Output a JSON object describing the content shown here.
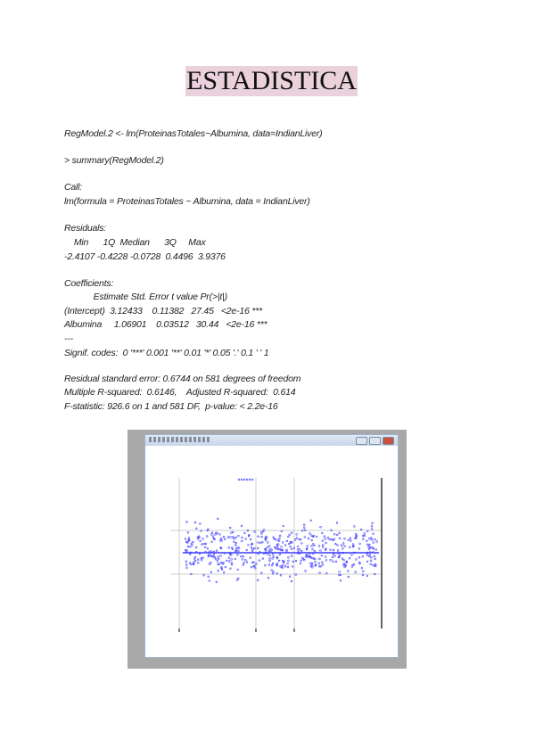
{
  "title": "ESTADISTICA",
  "lines": [
    "RegModel.2 <- lm(ProteinasTotales~Albumina, data=IndianLiver)",
    "> summary(RegModel.2)",
    "Call:",
    "lm(formula = ProteinasTotales ~ Albumina, data = IndianLiver)",
    "Residuals:",
    "    Min      1Q  Median      3Q     Max",
    "-2.4107 -0.4228 -0.0728  0.4496  3.9376",
    "Coefficients:",
    "            Estimate Std. Error t value Pr(>|t|)",
    "(Intercept)  3.12433    0.11382   27.45   <2e-16 ***",
    "Albumina     1.06901    0.03512   30.44   <2e-16 ***",
    "---",
    "Signif. codes:  0 '***' 0.001 '**' 0.01 '*' 0.05 '.' 0.1 ' ' 1",
    "Residual standard error: 0.6744 on 581 degrees of freedom",
    "Multiple R-squared:  0.6146,    Adjusted R-squared:  0.614",
    "F-statistic: 926.6 on 1 and 581 DF,  p-value: < 2.2e-16"
  ],
  "plot": {
    "point_color": "#3a3aff",
    "line_color": "#3a3aff"
  }
}
